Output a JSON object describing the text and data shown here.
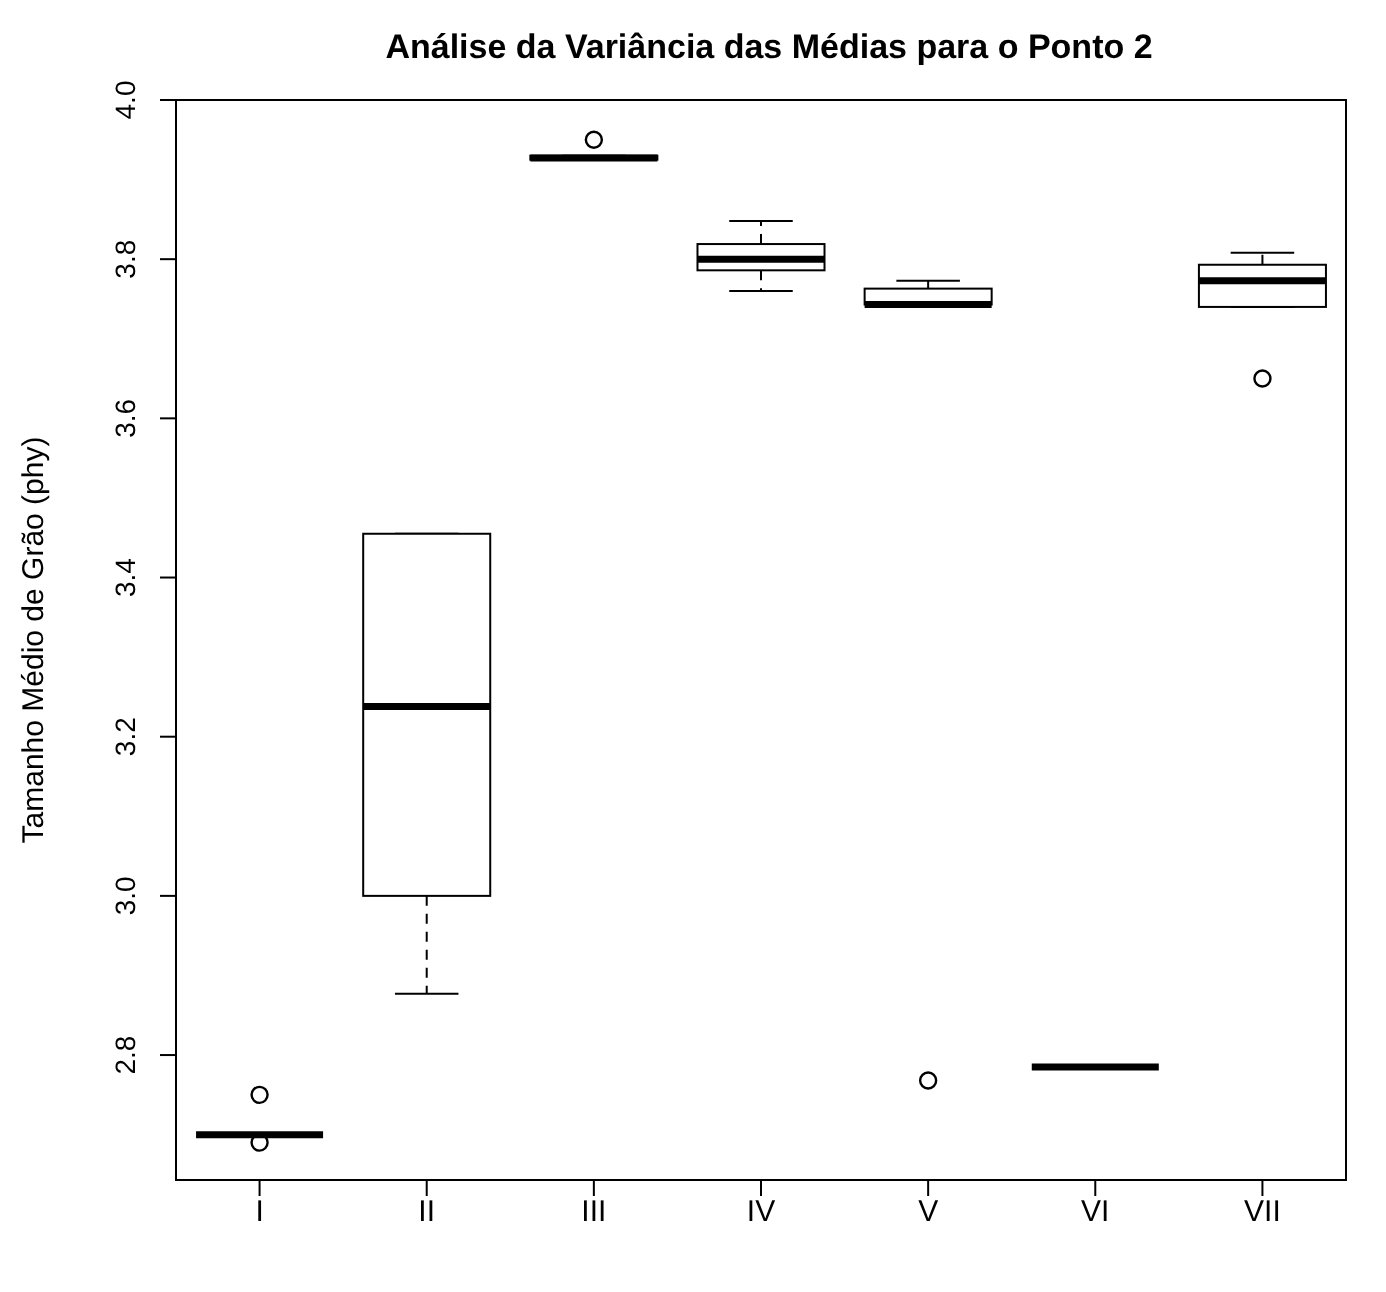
{
  "chart_data": {
    "type": "box",
    "title": "Análise da Variância das Médias para o Ponto 2",
    "ylabel": "Tamanho Médio de Grão (phy)",
    "categories": [
      "I",
      "II",
      "III",
      "IV",
      "V",
      "VI",
      "VII"
    ],
    "boxes": [
      {
        "low": 2.7,
        "q1": 2.7,
        "median": 2.7,
        "q3": 2.7,
        "high": 2.7,
        "outliers": [
          2.75,
          2.69
        ]
      },
      {
        "low": 2.877,
        "q1": 3.0,
        "median": 3.238,
        "q3": 3.455,
        "high": 3.455
      },
      {
        "low": 3.925,
        "q1": 3.925,
        "median": 3.927,
        "q3": 3.93,
        "high": 3.93,
        "outliers": [
          3.95
        ]
      },
      {
        "low": 3.76,
        "q1": 3.786,
        "median": 3.8,
        "q3": 3.819,
        "high": 3.848
      },
      {
        "low": 3.743,
        "q1": 3.743,
        "median": 3.743,
        "q3": 3.763,
        "high": 3.773,
        "outliers": [
          2.768
        ]
      },
      {
        "low": 2.785,
        "q1": 2.785,
        "median": 2.785,
        "q3": 2.785,
        "high": 2.785
      },
      {
        "low": 3.74,
        "q1": 3.74,
        "median": 3.773,
        "q3": 3.793,
        "high": 3.808,
        "outliers": [
          3.65
        ]
      }
    ],
    "ylim": [
      2.643,
      4.0
    ],
    "yticks": [
      2.8,
      {
        "value": 3,
        "label": "3.0"
      },
      3.2,
      3.4,
      3.6,
      3.8,
      {
        "value": 4,
        "label": "4.0"
      }
    ],
    "grid": false,
    "legend": false
  }
}
